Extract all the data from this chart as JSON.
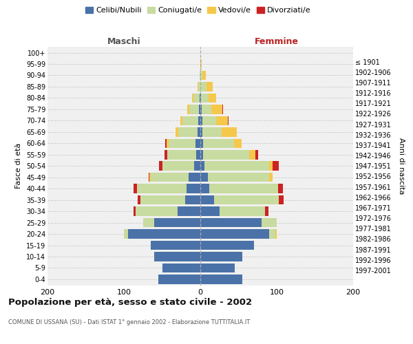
{
  "age_groups_bottom_to_top": [
    "0-4",
    "5-9",
    "10-14",
    "15-19",
    "20-24",
    "25-29",
    "30-34",
    "35-39",
    "40-44",
    "45-49",
    "50-54",
    "55-59",
    "60-64",
    "65-69",
    "70-74",
    "75-79",
    "80-84",
    "85-89",
    "90-94",
    "95-99",
    "100+"
  ],
  "birth_years_bottom_to_top": [
    "1997-2001",
    "1992-1996",
    "1987-1991",
    "1982-1986",
    "1977-1981",
    "1972-1976",
    "1967-1971",
    "1962-1966",
    "1957-1961",
    "1952-1956",
    "1947-1951",
    "1942-1946",
    "1937-1941",
    "1932-1936",
    "1927-1931",
    "1922-1926",
    "1917-1921",
    "1912-1916",
    "1907-1911",
    "1902-1906",
    "≤ 1901"
  ],
  "male_celibi": [
    55,
    50,
    60,
    65,
    95,
    60,
    30,
    20,
    18,
    15,
    8,
    5,
    6,
    4,
    3,
    2,
    1,
    0,
    0,
    0,
    0
  ],
  "male_coniugati": [
    0,
    0,
    0,
    0,
    5,
    15,
    55,
    58,
    65,
    50,
    42,
    38,
    35,
    25,
    20,
    12,
    8,
    3,
    1,
    0,
    0
  ],
  "male_vedovi": [
    0,
    0,
    0,
    0,
    0,
    0,
    0,
    0,
    0,
    2,
    0,
    0,
    3,
    3,
    3,
    3,
    2,
    1,
    0,
    0,
    0
  ],
  "male_divorziati": [
    0,
    0,
    0,
    0,
    0,
    0,
    2,
    4,
    4,
    1,
    4,
    4,
    2,
    0,
    0,
    0,
    0,
    0,
    0,
    0,
    0
  ],
  "fem_nubili": [
    55,
    45,
    55,
    70,
    90,
    80,
    25,
    18,
    12,
    10,
    5,
    4,
    4,
    3,
    3,
    2,
    1,
    0,
    0,
    0,
    0
  ],
  "fem_coniugate": [
    0,
    0,
    0,
    0,
    8,
    20,
    60,
    85,
    90,
    80,
    85,
    60,
    40,
    25,
    18,
    12,
    10,
    8,
    3,
    1,
    0
  ],
  "fem_vedove": [
    0,
    0,
    0,
    0,
    2,
    0,
    0,
    0,
    0,
    5,
    5,
    8,
    10,
    20,
    15,
    15,
    10,
    8,
    4,
    1,
    0
  ],
  "fem_divorziate": [
    0,
    0,
    0,
    0,
    0,
    0,
    4,
    6,
    6,
    0,
    8,
    4,
    0,
    0,
    1,
    1,
    0,
    0,
    0,
    0,
    0
  ],
  "colors": {
    "celibi_nubili": "#4a72a8",
    "coniugati": "#c8dba0",
    "vedovi": "#f5c84c",
    "divorziati": "#cc2222"
  },
  "xlim": 200,
  "title": "Popolazione per età, sesso e stato civile - 2002",
  "subtitle": "COMUNE DI USSANA (SU) - Dati ISTAT 1° gennaio 2002 - Elaborazione TUTTITALIA.IT",
  "header_left": "Maschi",
  "header_right": "Femmine",
  "ylabel_left": "Fasce di età",
  "ylabel_right": "Anni di nascita",
  "legend_labels": [
    "Celibi/Nubili",
    "Coniugati/e",
    "Vedovi/e",
    "Divorziati/e"
  ],
  "bg_color": "#ffffff",
  "plot_bg": "#f0f0f0",
  "grid_color": "#cccccc",
  "xticks": [
    -200,
    -100,
    0,
    100,
    200
  ]
}
